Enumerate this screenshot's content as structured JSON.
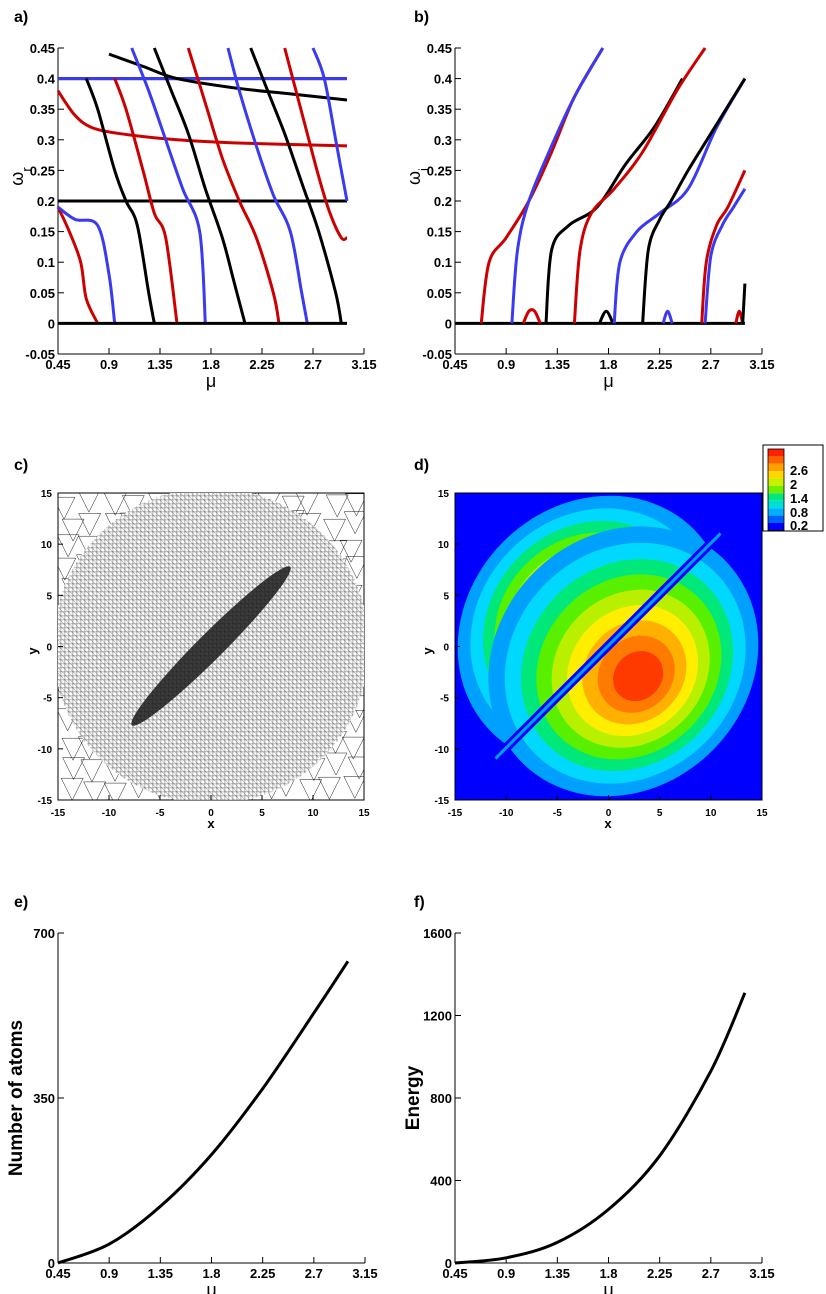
{
  "figure": {
    "panels": [
      {
        "id": "a",
        "label": "a)"
      },
      {
        "id": "b",
        "label": "b)"
      },
      {
        "id": "c",
        "label": "c)"
      },
      {
        "id": "d",
        "label": "d)"
      },
      {
        "id": "e",
        "label": "e)"
      },
      {
        "id": "f",
        "label": "f)"
      }
    ]
  },
  "colors": {
    "black": "#000000",
    "red": "#cc0000",
    "blue": "#3a3af0",
    "field_bg": "#0000ff"
  },
  "chart_data": [
    {
      "panel": "a",
      "type": "line",
      "xlabel": "μ",
      "ylabel": "ω_r",
      "xlim": [
        0.45,
        3.15
      ],
      "ylim": [
        -0.05,
        0.45
      ],
      "xticks": [
        "0.45",
        "0.9",
        "1.35",
        "1.8",
        "2.25",
        "2.7",
        "3.15"
      ],
      "yticks": [
        "-0.05",
        "0",
        "0.05",
        "0.1",
        "0.15",
        "0.2",
        "0.25",
        "0.3",
        "0.35",
        "0.4",
        "0.45"
      ],
      "series": [
        {
          "color": "black",
          "x": [
            0.45,
            3.0
          ],
          "y": [
            0.4,
            0.4
          ]
        },
        {
          "color": "blue",
          "x": [
            0.45,
            3.0
          ],
          "y": [
            0.4,
            0.4
          ]
        },
        {
          "color": "red",
          "x": [
            0.45,
            3.0
          ],
          "y": [
            0.2,
            0.2
          ]
        },
        {
          "color": "blue",
          "x": [
            0.45,
            3.0
          ],
          "y": [
            0.2,
            0.2
          ]
        },
        {
          "color": "black",
          "x": [
            0.45,
            3.0
          ],
          "y": [
            0.2,
            0.2
          ]
        },
        {
          "color": "red",
          "x": [
            0.45,
            0.6,
            0.75,
            1.0,
            1.5,
            2.0,
            3.0
          ],
          "y": [
            0.38,
            0.34,
            0.32,
            0.31,
            0.3,
            0.295,
            0.29
          ]
        },
        {
          "color": "black",
          "x": [
            0.9,
            1.2,
            1.5,
            2.0,
            2.5,
            3.0
          ],
          "y": [
            0.44,
            0.42,
            0.4,
            0.385,
            0.375,
            0.365
          ]
        },
        {
          "color": "red",
          "x": [
            0.45,
            0.55,
            0.65,
            0.7,
            0.8
          ],
          "y": [
            0.19,
            0.15,
            0.1,
            0.04,
            0.0
          ]
        },
        {
          "color": "blue",
          "x": [
            0.45,
            0.6,
            0.8,
            0.9,
            0.95
          ],
          "y": [
            0.19,
            0.17,
            0.16,
            0.08,
            0.0
          ]
        },
        {
          "color": "black",
          "x": [
            0.7,
            0.8,
            0.95,
            1.05,
            1.15,
            1.25,
            1.3
          ],
          "y": [
            0.4,
            0.35,
            0.25,
            0.2,
            0.16,
            0.05,
            0.0
          ]
        },
        {
          "color": "red",
          "x": [
            0.95,
            1.05,
            1.2,
            1.3,
            1.4,
            1.5
          ],
          "y": [
            0.4,
            0.35,
            0.25,
            0.18,
            0.14,
            0.0
          ]
        },
        {
          "color": "blue",
          "x": [
            1.1,
            1.25,
            1.4,
            1.55,
            1.7,
            1.75
          ],
          "y": [
            0.45,
            0.38,
            0.3,
            0.22,
            0.15,
            0.0
          ]
        },
        {
          "color": "black",
          "x": [
            1.3,
            1.45,
            1.6,
            1.75,
            1.9,
            2.0,
            2.1
          ],
          "y": [
            0.45,
            0.38,
            0.31,
            0.22,
            0.14,
            0.07,
            0.0
          ]
        },
        {
          "color": "red",
          "x": [
            1.6,
            1.75,
            1.9,
            2.05,
            2.2,
            2.35,
            2.4
          ],
          "y": [
            0.45,
            0.36,
            0.27,
            0.2,
            0.14,
            0.05,
            0.0
          ]
        },
        {
          "color": "blue",
          "x": [
            1.95,
            2.05,
            2.2,
            2.35,
            2.5,
            2.6,
            2.65
          ],
          "y": [
            0.45,
            0.38,
            0.29,
            0.21,
            0.15,
            0.05,
            0.0
          ]
        },
        {
          "color": "black",
          "x": [
            2.15,
            2.3,
            2.45,
            2.6,
            2.75,
            2.9,
            2.95
          ],
          "y": [
            0.45,
            0.38,
            0.31,
            0.23,
            0.15,
            0.05,
            0.0
          ]
        },
        {
          "color": "red",
          "x": [
            2.45,
            2.55,
            2.65,
            2.75,
            2.85,
            2.95,
            3.0
          ],
          "y": [
            0.45,
            0.38,
            0.31,
            0.24,
            0.18,
            0.14,
            0.14
          ]
        },
        {
          "color": "blue",
          "x": [
            2.7,
            2.8,
            2.9,
            3.0
          ],
          "y": [
            0.45,
            0.4,
            0.3,
            0.2
          ]
        },
        {
          "color": "black",
          "x": [
            0.45,
            3.0
          ],
          "y": [
            0.0,
            0.0
          ]
        }
      ]
    },
    {
      "panel": "b",
      "type": "line",
      "xlabel": "μ",
      "ylabel": "ω_i",
      "xlim": [
        0.45,
        3.15
      ],
      "ylim": [
        -0.05,
        0.45
      ],
      "xticks": [
        "0.45",
        "0.9",
        "1.35",
        "1.8",
        "2.25",
        "2.7",
        "3.15"
      ],
      "yticks": [
        "-0.05",
        "0",
        "0.05",
        "0.1",
        "0.15",
        "0.2",
        "0.25",
        "0.3",
        "0.35",
        "0.4",
        "0.45"
      ],
      "series": [
        {
          "color": "black",
          "x": [
            0.45,
            3.0
          ],
          "y": [
            0.0,
            0.0
          ]
        },
        {
          "color": "red",
          "x": [
            0.68,
            0.75,
            0.9,
            1.1,
            1.3,
            1.5,
            1.75
          ],
          "y": [
            0.0,
            0.1,
            0.14,
            0.2,
            0.28,
            0.37,
            0.45
          ]
        },
        {
          "color": "blue",
          "x": [
            0.95,
            1.0,
            1.1,
            1.3,
            1.5,
            1.75
          ],
          "y": [
            0.0,
            0.12,
            0.2,
            0.29,
            0.37,
            0.45
          ]
        },
        {
          "color": "red",
          "x": [
            1.05,
            1.1,
            1.15,
            1.2
          ],
          "y": [
            0.0,
            0.02,
            0.02,
            0.0
          ]
        },
        {
          "color": "black",
          "x": [
            1.25,
            1.3,
            1.45,
            1.7,
            1.95,
            2.2,
            2.45
          ],
          "y": [
            0.0,
            0.12,
            0.16,
            0.19,
            0.26,
            0.32,
            0.4
          ]
        },
        {
          "color": "red",
          "x": [
            1.5,
            1.55,
            1.65,
            1.85,
            2.1,
            2.4,
            2.65
          ],
          "y": [
            0.0,
            0.12,
            0.18,
            0.22,
            0.28,
            0.38,
            0.45
          ]
        },
        {
          "color": "black",
          "x": [
            1.72,
            1.78,
            1.84
          ],
          "y": [
            0.0,
            0.02,
            0.0
          ]
        },
        {
          "color": "blue",
          "x": [
            1.85,
            1.9,
            2.05,
            2.25,
            2.5,
            2.75,
            3.0
          ],
          "y": [
            0.0,
            0.1,
            0.15,
            0.18,
            0.22,
            0.32,
            0.4
          ]
        },
        {
          "color": "black",
          "x": [
            2.1,
            2.15,
            2.25,
            2.35,
            2.5,
            2.7,
            3.0
          ],
          "y": [
            0.0,
            0.12,
            0.17,
            0.2,
            0.25,
            0.31,
            0.4
          ]
        },
        {
          "color": "blue",
          "x": [
            2.28,
            2.32,
            2.36
          ],
          "y": [
            0.0,
            0.02,
            0.0
          ]
        },
        {
          "color": "red",
          "x": [
            2.62,
            2.66,
            2.75,
            2.85,
            3.0
          ],
          "y": [
            0.0,
            0.1,
            0.16,
            0.19,
            0.25
          ]
        },
        {
          "color": "blue",
          "x": [
            2.65,
            2.7,
            2.8,
            2.9,
            3.0
          ],
          "y": [
            0.0,
            0.11,
            0.16,
            0.19,
            0.22
          ]
        },
        {
          "color": "red",
          "x": [
            2.92,
            2.95,
            2.98
          ],
          "y": [
            0.0,
            0.02,
            0.0
          ]
        },
        {
          "color": "black",
          "x": [
            2.98,
            3.0
          ],
          "y": [
            0.0,
            0.065
          ]
        }
      ]
    },
    {
      "panel": "c",
      "type": "mesh",
      "xlabel": "x",
      "ylabel": "y",
      "xlim": [
        -15,
        15
      ],
      "ylim": [
        -15,
        15
      ],
      "xticks": [
        "-15",
        "-10",
        "-5",
        "0",
        "5",
        "10",
        "15"
      ],
      "yticks": [
        "-15",
        "-10",
        "-5",
        "0",
        "5",
        "10",
        "15"
      ]
    },
    {
      "panel": "d",
      "type": "heatmap",
      "xlabel": "x",
      "ylabel": "y",
      "xlim": [
        -15,
        15
      ],
      "ylim": [
        -15,
        15
      ],
      "xticks": [
        "-15",
        "-10",
        "-5",
        "0",
        "5",
        "10",
        "15"
      ],
      "yticks": [
        "-15",
        "-10",
        "-5",
        "0",
        "5",
        "10",
        "15"
      ],
      "colorbar_ticks": [
        "2.6",
        "2",
        "1.4",
        "0.8",
        "0.2"
      ]
    },
    {
      "panel": "e",
      "type": "line",
      "xlabel": "μ",
      "ylabel": "Number of atoms",
      "xlim": [
        0.45,
        3.15
      ],
      "ylim": [
        0,
        700
      ],
      "xticks": [
        "0.45",
        "0.9",
        "1.35",
        "1.8",
        "2.25",
        "2.7",
        "3.15"
      ],
      "yticks": [
        "0",
        "350",
        "700"
      ],
      "series": [
        {
          "color": "black",
          "x": [
            0.45,
            0.9,
            1.35,
            1.8,
            2.25,
            2.7,
            3.0
          ],
          "y": [
            0,
            40,
            120,
            230,
            370,
            530,
            640
          ]
        }
      ]
    },
    {
      "panel": "f",
      "type": "line",
      "xlabel": "μ",
      "ylabel": "Energy",
      "xlim": [
        0.45,
        3.15
      ],
      "ylim": [
        0,
        1600
      ],
      "xticks": [
        "0.45",
        "0.9",
        "1.35",
        "1.8",
        "2.25",
        "2.7",
        "3.15"
      ],
      "yticks": [
        "0",
        "400",
        "800",
        "1200",
        "1600"
      ],
      "series": [
        {
          "color": "black",
          "x": [
            0.45,
            0.9,
            1.35,
            1.8,
            2.25,
            2.7,
            3.0
          ],
          "y": [
            0,
            25,
            100,
            260,
            520,
            930,
            1310
          ]
        }
      ]
    }
  ]
}
